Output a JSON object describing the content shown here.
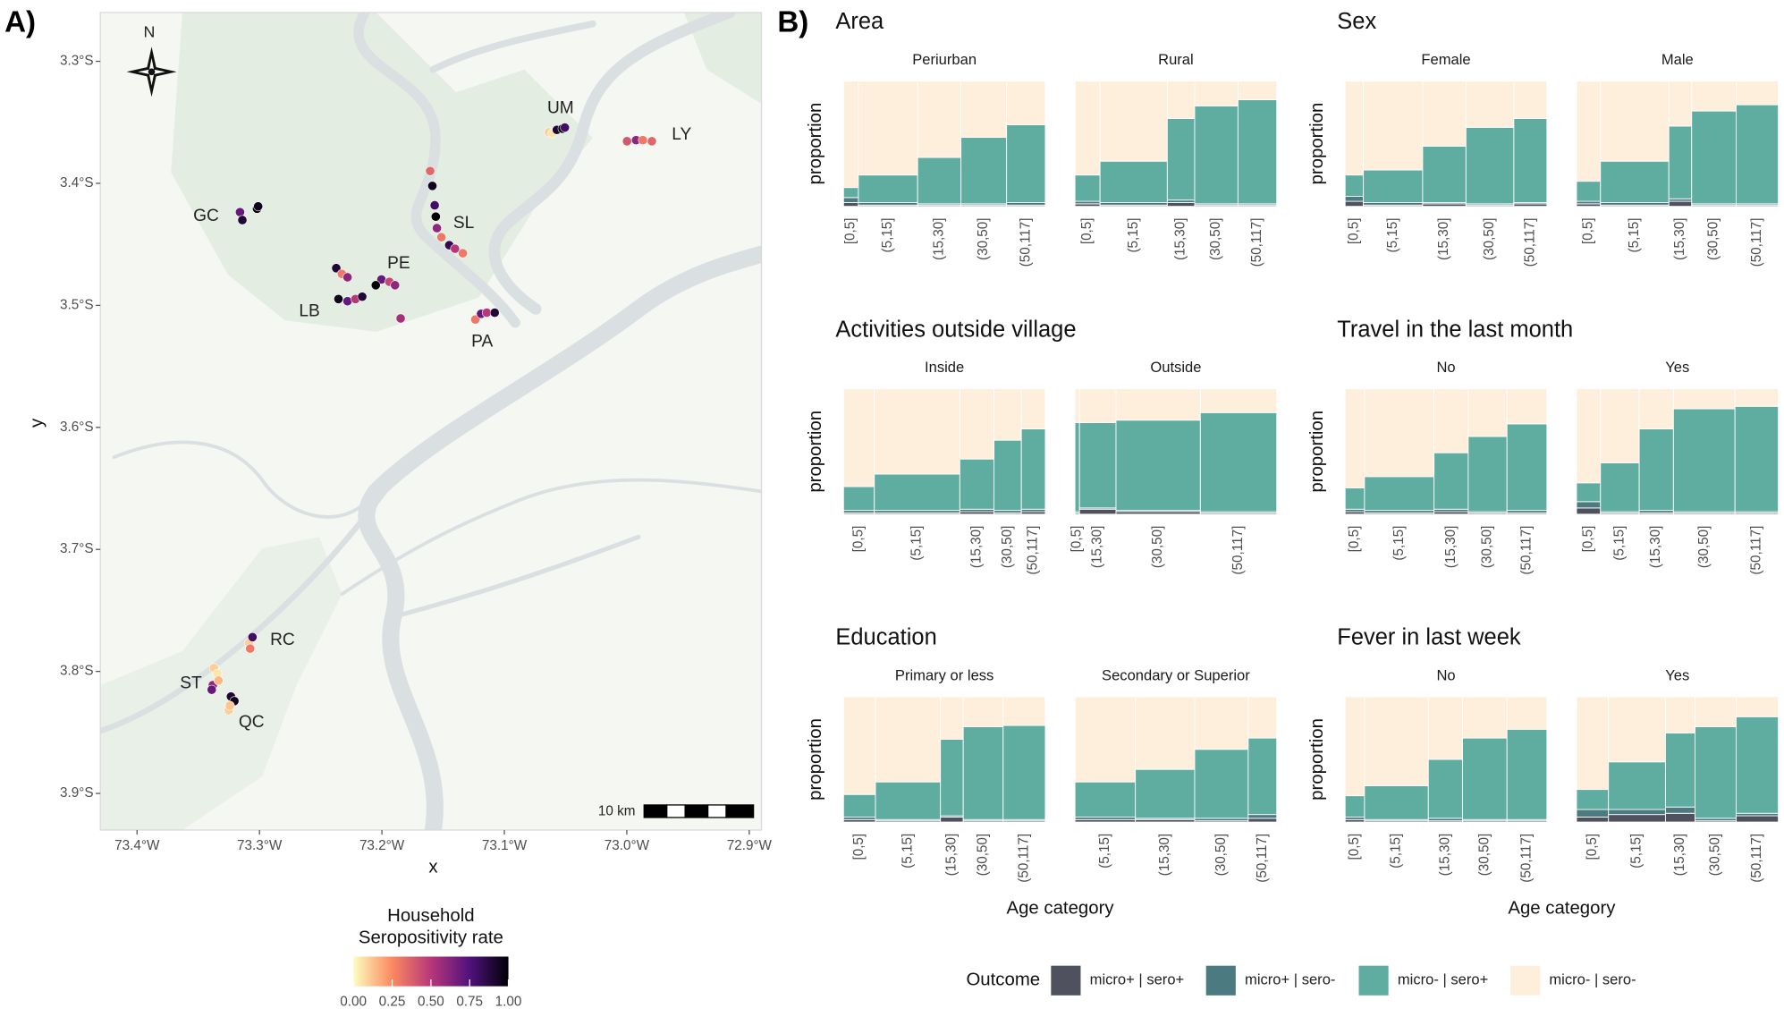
{
  "chart_data": [
    {
      "type": "map",
      "panel_label": "A)",
      "xlabel": "x",
      "ylabel": "y",
      "xlim": [
        -73.43,
        -72.89
      ],
      "ylim": [
        -3.93,
        -3.26
      ],
      "xticks": [
        {
          "value": -73.4,
          "label": "73.4°W"
        },
        {
          "value": -73.3,
          "label": "73.3°W"
        },
        {
          "value": -73.2,
          "label": "73.2°W"
        },
        {
          "value": -73.1,
          "label": "73.1°W"
        },
        {
          "value": -73.0,
          "label": "73.0°W"
        },
        {
          "value": -72.9,
          "label": "72.9°W"
        }
      ],
      "yticks": [
        {
          "value": -3.3,
          "label": "3.3°S"
        },
        {
          "value": -3.4,
          "label": "3.4°S"
        },
        {
          "value": -3.5,
          "label": "3.5°S"
        },
        {
          "value": -3.6,
          "label": "3.6°S"
        },
        {
          "value": -3.7,
          "label": "3.7°S"
        },
        {
          "value": -3.8,
          "label": "3.8°S"
        },
        {
          "value": -3.9,
          "label": "3.9°S"
        }
      ],
      "compass": "N",
      "scale_bar": "10 km",
      "color_scale": {
        "title": [
          "Household",
          "Seropositivity rate"
        ],
        "lim": [
          0,
          1
        ],
        "ticks": [
          {
            "value": 0,
            "label": "0.00"
          },
          {
            "value": 0.25,
            "label": "0.25"
          },
          {
            "value": 0.5,
            "label": "0.50"
          },
          {
            "value": 0.75,
            "label": "0.75"
          },
          {
            "value": 1,
            "label": "1.00"
          }
        ],
        "colors": [
          "#fcfdbf",
          "#fc8961",
          "#b73779",
          "#51127c",
          "#000004"
        ]
      },
      "villages": [
        {
          "name": "UM",
          "x": [
            -73.0636,
            -73.0608,
            -73.0571,
            -73.0525,
            -73.0506
          ],
          "y": [
            -3.3581,
            -3.359,
            -3.3562,
            -3.3552,
            -3.3543
          ],
          "rate": [
            0.1,
            0.05,
            0.9,
            1.0,
            0.8
          ]
        },
        {
          "name": "LY",
          "x": [
            -72.9998,
            -72.9924,
            -72.9869,
            -72.9795
          ],
          "y": [
            -3.3655,
            -3.3646,
            -3.3646,
            -3.3655
          ],
          "rate": [
            0.4,
            0.6,
            0.3,
            0.35
          ]
        },
        {
          "name": "GC",
          "x": [
            -73.3159,
            -73.314,
            -73.302,
            -73.3011
          ],
          "y": [
            -3.4236,
            -3.4301,
            -3.4208,
            -3.4189
          ],
          "rate": [
            0.7,
            0.9,
            1.0,
            0.95
          ]
        },
        {
          "name": "SL",
          "x": [
            -73.1606,
            -73.1588,
            -73.1569,
            -73.156,
            -73.1551,
            -73.1514,
            -73.145,
            -73.1403,
            -73.1339
          ],
          "y": [
            -3.3899,
            -3.4021,
            -3.418,
            -3.4273,
            -3.4367,
            -3.4442,
            -3.4507,
            -3.4536,
            -3.4573
          ],
          "rate": [
            0.35,
            0.95,
            0.8,
            1.0,
            0.6,
            0.3,
            0.85,
            0.5,
            0.3
          ]
        },
        {
          "name": "PE",
          "x": [
            -73.2004,
            -73.1939,
            -73.1893,
            -73.205,
            -73.1847
          ],
          "y": [
            -3.4788,
            -3.4807,
            -3.4835,
            -3.4835,
            -3.5107
          ],
          "rate": [
            0.7,
            0.45,
            0.6,
            1.0,
            0.55
          ]
        },
        {
          "name": "LB",
          "x": [
            -73.2373,
            -73.2327,
            -73.2281,
            -73.2355,
            -73.2281,
            -73.2216,
            -73.2161
          ],
          "y": [
            -3.4695,
            -3.4742,
            -3.477,
            -3.4948,
            -3.4966,
            -3.4948,
            -3.4929
          ],
          "rate": [
            0.9,
            0.3,
            0.6,
            0.95,
            0.7,
            0.5,
            0.9
          ]
        },
        {
          "name": "PA",
          "x": [
            -73.1237,
            -73.119,
            -73.1144,
            -73.1079
          ],
          "y": [
            -3.5116,
            -3.5069,
            -3.506,
            -3.506
          ],
          "rate": [
            0.3,
            0.7,
            0.5,
            0.9
          ]
        },
        {
          "name": "RC",
          "x": [
            -73.3085,
            -73.3057,
            -73.3076
          ],
          "y": [
            -3.7766,
            -3.7719,
            -3.7813
          ],
          "rate": [
            0.1,
            0.8,
            0.3
          ]
        },
        {
          "name": "ST",
          "x": [
            -73.3372,
            -73.3344,
            -73.3381,
            -73.339,
            -73.3335
          ],
          "y": [
            -3.7972,
            -3.8019,
            -3.8112,
            -3.815,
            -3.8075
          ],
          "rate": [
            0.1,
            0.05,
            0.6,
            0.7,
            0.15
          ]
        },
        {
          "name": "QC",
          "x": [
            -73.3233,
            -73.3205,
            -73.3251,
            -73.3242
          ],
          "y": [
            -3.8206,
            -3.8243,
            -3.8318,
            -3.8281
          ],
          "rate": [
            0.9,
            0.95,
            0.1,
            0.12
          ]
        }
      ]
    },
    {
      "type": "mosaic",
      "panel_label": "B)",
      "xlabel": "Age category",
      "ylabel": "proportion",
      "legend_title": "Outcome",
      "series": [
        {
          "name": "micro+ | sero+",
          "color": "#50515f"
        },
        {
          "name": "micro+ | sero-",
          "color": "#4b7a80"
        },
        {
          "name": "micro- | sero+",
          "color": "#5fada0"
        },
        {
          "name": "micro- | sero-",
          "color": "#fdefdc"
        }
      ],
      "panels": [
        {
          "title": "Area",
          "facets": [
            {
              "label": "Periurban",
              "categories": [
                "[0,5]",
                "(5,15]",
                "(15,30]",
                "(30,50]",
                "(50,117]"
              ],
              "widths": [
                13,
                52,
                38,
                40,
                34
              ],
              "values": [
                [
                  0.03,
                  0.01,
                  0.01,
                  0.01,
                  0.01
                ],
                [
                  0.04,
                  0.02,
                  0.01,
                  0.01,
                  0.02
                ],
                [
                  0.08,
                  0.22,
                  0.37,
                  0.53,
                  0.62
                ],
                [
                  0.85,
                  0.75,
                  0.61,
                  0.45,
                  0.35
                ]
              ]
            },
            {
              "label": "Rural",
              "categories": [
                "[0,5]",
                "(5,15]",
                "(15,30]",
                "(30,50]",
                "(50,117]"
              ],
              "widths": [
                22,
                59,
                24,
                38,
                34
              ],
              "values": [
                [
                  0.02,
                  0.01,
                  0.03,
                  0.01,
                  0.01
                ],
                [
                  0.02,
                  0.02,
                  0.02,
                  0.01,
                  0.01
                ],
                [
                  0.21,
                  0.33,
                  0.65,
                  0.78,
                  0.83
                ],
                [
                  0.75,
                  0.64,
                  0.3,
                  0.2,
                  0.15
                ]
              ]
            }
          ]
        },
        {
          "title": "Sex",
          "facets": [
            {
              "label": "Female",
              "categories": [
                "[0,5]",
                "(5,15]",
                "(15,30]",
                "(30,50]",
                "(50,117]"
              ],
              "widths": [
                16,
                52,
                38,
                42,
                29
              ],
              "values": [
                [
                  0.04,
                  0.01,
                  0.02,
                  0.01,
                  0.02
                ],
                [
                  0.04,
                  0.02,
                  0.01,
                  0.01,
                  0.01
                ],
                [
                  0.17,
                  0.26,
                  0.45,
                  0.61,
                  0.67
                ],
                [
                  0.75,
                  0.71,
                  0.52,
                  0.37,
                  0.3
                ]
              ]
            },
            {
              "label": "Male",
              "categories": [
                "[0,5]",
                "(5,15]",
                "(15,30]",
                "(30,50]",
                "(50,117]"
              ],
              "widths": [
                21,
                60,
                20,
                39,
                37
              ],
              "values": [
                [
                  0.02,
                  0.01,
                  0.04,
                  0.01,
                  0.01
                ],
                [
                  0.02,
                  0.02,
                  0.02,
                  0.01,
                  0.01
                ],
                [
                  0.16,
                  0.33,
                  0.58,
                  0.74,
                  0.79
                ],
                [
                  0.8,
                  0.64,
                  0.36,
                  0.24,
                  0.19
                ]
              ]
            }
          ]
        },
        {
          "title": "Activities outside village",
          "facets": [
            {
              "label": "Inside",
              "categories": [
                "[0,5]",
                "(5,15]",
                "(15,30]",
                "(30,50]",
                "(50,117]"
              ],
              "widths": [
                27,
                75,
                30,
                24,
                21
              ],
              "values": [
                [
                  0.01,
                  0.01,
                  0.02,
                  0.01,
                  0.02
                ],
                [
                  0.02,
                  0.02,
                  0.02,
                  0.02,
                  0.02
                ],
                [
                  0.19,
                  0.29,
                  0.4,
                  0.56,
                  0.64
                ],
                [
                  0.78,
                  0.68,
                  0.56,
                  0.41,
                  0.32
                ]
              ]
            },
            {
              "label": "Outside",
              "categories": [
                "[0,5]",
                "(15,30]",
                "(30,50]",
                "(50,117]"
              ],
              "widths": [
                4,
                32,
                74,
                67
              ],
              "values": [
                [
                  0.01,
                  0.04,
                  0.02,
                  0.01
                ],
                [
                  0.01,
                  0.01,
                  0.01,
                  0.01
                ],
                [
                  0.71,
                  0.68,
                  0.72,
                  0.79
                ],
                [
                  0.27,
                  0.27,
                  0.25,
                  0.19
                ]
              ]
            }
          ]
        },
        {
          "title": "Travel in the last month",
          "facets": [
            {
              "label": "No",
              "categories": [
                "[0,5]",
                "(5,15]",
                "(15,30]",
                "(30,50]",
                "(50,117]"
              ],
              "widths": [
                17,
                61,
                30,
                34,
                35
              ],
              "values": [
                [
                  0.02,
                  0.01,
                  0.02,
                  0.01,
                  0.01
                ],
                [
                  0.02,
                  0.02,
                  0.02,
                  0.01,
                  0.02
                ],
                [
                  0.17,
                  0.27,
                  0.45,
                  0.6,
                  0.69
                ],
                [
                  0.79,
                  0.7,
                  0.51,
                  0.38,
                  0.28
                ]
              ]
            },
            {
              "label": "Yes",
              "categories": [
                "[0,5]",
                "(5,15]",
                "(15,30]",
                "(30,50]",
                "(50,117]"
              ],
              "widths": [
                21,
                34,
                30,
                54,
                38
              ],
              "values": [
                [
                  0.05,
                  0.01,
                  0.01,
                  0.01,
                  0.01
                ],
                [
                  0.05,
                  0.01,
                  0.02,
                  0.01,
                  0.01
                ],
                [
                  0.15,
                  0.39,
                  0.65,
                  0.82,
                  0.84
                ],
                [
                  0.75,
                  0.59,
                  0.32,
                  0.16,
                  0.14
                ]
              ]
            }
          ]
        },
        {
          "title": "Education",
          "facets": [
            {
              "label": "Primary or less",
              "categories": [
                "[0,5]",
                "(5,15]",
                "(15,30]",
                "(30,50]",
                "(50,117]"
              ],
              "widths": [
                28,
                57,
                20,
                35,
                37
              ],
              "values": [
                [
                  0.02,
                  0.01,
                  0.04,
                  0.01,
                  0.01
                ],
                [
                  0.02,
                  0.01,
                  0.01,
                  0.01,
                  0.01
                ],
                [
                  0.18,
                  0.3,
                  0.61,
                  0.74,
                  0.75
                ],
                [
                  0.78,
                  0.68,
                  0.34,
                  0.24,
                  0.23
                ]
              ]
            },
            {
              "label": "Secondary or Superior",
              "categories": [
                "(5,15]",
                "(15,30]",
                "(30,50]",
                "(50,117]"
              ],
              "widths": [
                53,
                52,
                47,
                25
              ],
              "values": [
                [
                  0.02,
                  0.02,
                  0.01,
                  0.03
                ],
                [
                  0.02,
                  0.01,
                  0.02,
                  0.03
                ],
                [
                  0.28,
                  0.39,
                  0.55,
                  0.61
                ],
                [
                  0.68,
                  0.58,
                  0.42,
                  0.33
                ]
              ]
            }
          ]
        },
        {
          "title": "Fever in last week",
          "facets": [
            {
              "label": "No",
              "categories": [
                "[0,5]",
                "(5,15]",
                "(15,30]",
                "(30,50]",
                "(50,117]"
              ],
              "widths": [
                17,
                56,
                30,
                39,
                35
              ],
              "values": [
                [
                  0.02,
                  0.01,
                  0.01,
                  0.01,
                  0.01
                ],
                [
                  0.02,
                  0.01,
                  0.02,
                  0.01,
                  0.01
                ],
                [
                  0.17,
                  0.27,
                  0.47,
                  0.65,
                  0.72
                ],
                [
                  0.79,
                  0.71,
                  0.5,
                  0.33,
                  0.26
                ]
              ]
            },
            {
              "label": "Yes",
              "categories": [
                "[0,5]",
                "(5,15]",
                "(15,30]",
                "(30,50]",
                "(50,117]"
              ],
              "widths": [
                28,
                50,
                26,
                36,
                37
              ],
              "values": [
                [
                  0.04,
                  0.06,
                  0.07,
                  0.01,
                  0.05
                ],
                [
                  0.06,
                  0.04,
                  0.05,
                  0.02,
                  0.02
                ],
                [
                  0.16,
                  0.38,
                  0.59,
                  0.73,
                  0.77
                ],
                [
                  0.74,
                  0.52,
                  0.29,
                  0.24,
                  0.16
                ]
              ]
            }
          ]
        }
      ]
    }
  ]
}
